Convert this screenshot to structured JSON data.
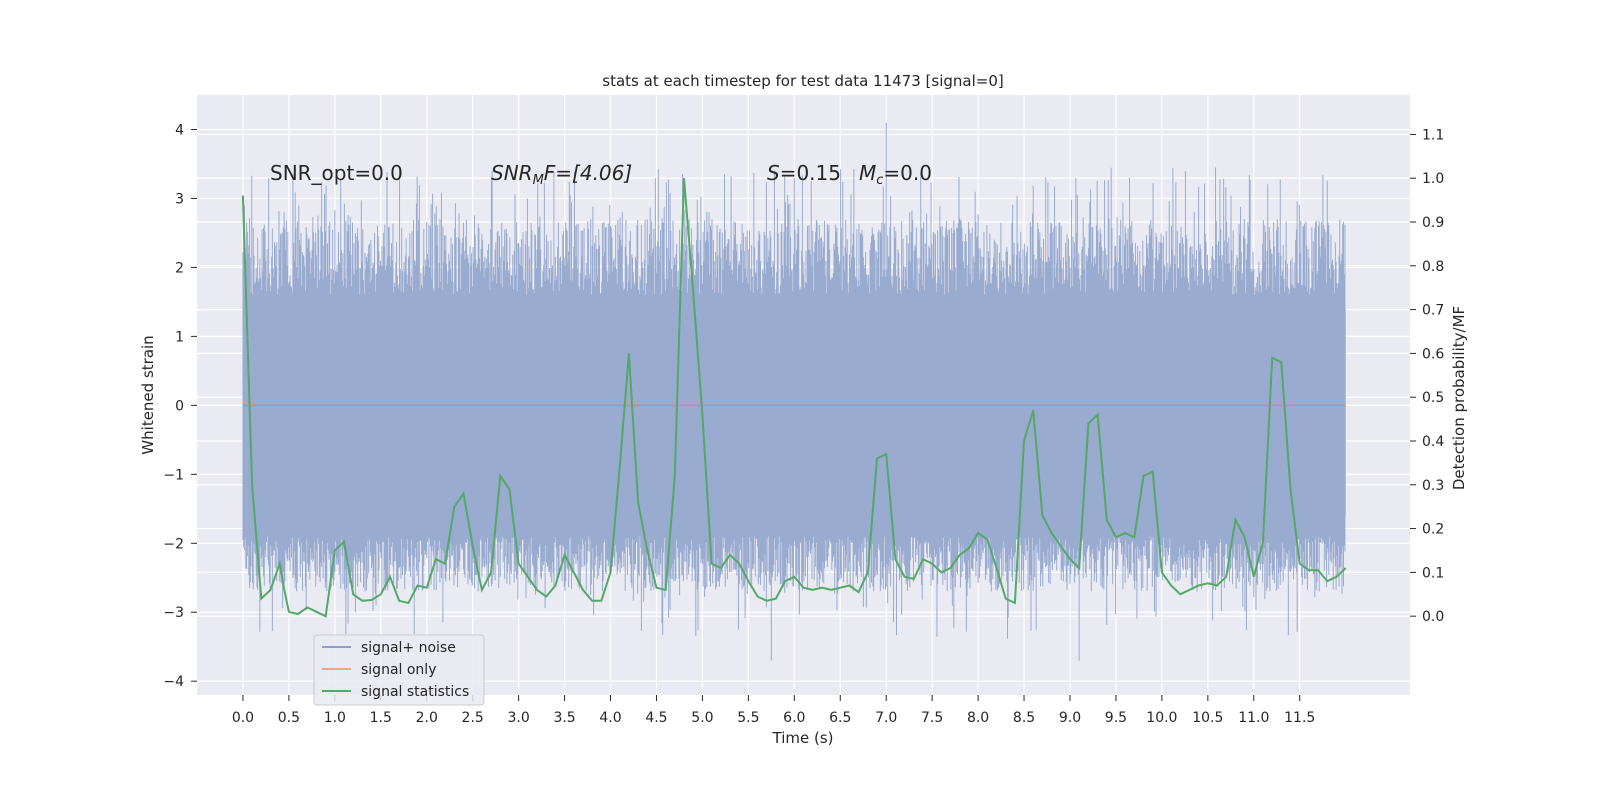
{
  "chart_data": {
    "type": "line",
    "title": "stats at each timestep for test data 11473 [signal=0]",
    "xlabel": "Time (s)",
    "ylabel_left": "Whitened strain",
    "ylabel_right": "Detection probability/MF",
    "xlim": [
      -0.5,
      12.7
    ],
    "ylim_left": [
      -4.2,
      4.5
    ],
    "ylim_right": [
      -0.18,
      1.19
    ],
    "x_ticks": [
      "0.0",
      "0.5",
      "1.0",
      "1.5",
      "2.0",
      "2.5",
      "3.0",
      "3.5",
      "4.0",
      "4.5",
      "5.0",
      "5.5",
      "6.0",
      "6.5",
      "7.0",
      "7.5",
      "8.0",
      "8.5",
      "9.0",
      "9.5",
      "10.0",
      "10.5",
      "11.0",
      "11.5"
    ],
    "x_tick_values": [
      0.0,
      0.5,
      1.0,
      1.5,
      2.0,
      2.5,
      3.0,
      3.5,
      4.0,
      4.5,
      5.0,
      5.5,
      6.0,
      6.5,
      7.0,
      7.5,
      8.0,
      8.5,
      9.0,
      9.5,
      10.0,
      10.5,
      11.0,
      11.5
    ],
    "y_left_ticks": [
      "−4",
      "−3",
      "−2",
      "−1",
      "0",
      "1",
      "2",
      "3",
      "4"
    ],
    "y_left_tick_values": [
      -4,
      -3,
      -2,
      -1,
      0,
      1,
      2,
      3,
      4
    ],
    "y_right_ticks": [
      "0.0",
      "0.1",
      "0.2",
      "0.3",
      "0.4",
      "0.5",
      "0.6",
      "0.7",
      "0.8",
      "0.9",
      "1.0",
      "1.1"
    ],
    "y_right_tick_values": [
      0.0,
      0.1,
      0.2,
      0.3,
      0.4,
      0.5,
      0.6,
      0.7,
      0.8,
      0.9,
      1.0,
      1.1
    ],
    "annotations": {
      "snr_opt": "SNR_opt=0.0",
      "snr_mf_sym": "SNR",
      "snr_mf_sub": "M",
      "snr_mf_rest": "F=[4.06]",
      "s_sym": "S",
      "s_rest": "=0.15",
      "mc_sym": "M",
      "mc_sub": "c",
      "mc_rest": "=0.0"
    },
    "legend": {
      "position": "lower-left",
      "entries": [
        {
          "label": "signal+ noise",
          "color": "#8da0cb"
        },
        {
          "label": "signal only",
          "color": "#e5a98a"
        },
        {
          "label": "signal statistics",
          "color": "#55a868"
        }
      ]
    },
    "noise_series": {
      "name": "signal+ noise",
      "color": "#9aabd0",
      "x_range": [
        0.0,
        12.0
      ],
      "amplitude_band": [
        -1.6,
        1.4
      ],
      "typical_peak_range": [
        2.0,
        3.45
      ],
      "typical_trough_range": [
        -2.2,
        -3.2
      ],
      "max": 4.1,
      "min": -3.7
    },
    "signal_only": {
      "name": "signal only",
      "color": "#dd8452",
      "x": [
        0.0,
        12.0
      ],
      "y": [
        0.0,
        0.0
      ]
    },
    "statistics_series": {
      "name": "signal statistics",
      "color": "#55a868",
      "x": [
        0.0,
        0.1,
        0.2,
        0.3,
        0.4,
        0.45,
        0.5,
        0.6,
        0.7,
        0.8,
        0.9,
        1.0,
        1.1,
        1.2,
        1.3,
        1.4,
        1.5,
        1.6,
        1.7,
        1.8,
        1.9,
        2.0,
        2.1,
        2.2,
        2.3,
        2.4,
        2.5,
        2.6,
        2.7,
        2.8,
        2.9,
        3.0,
        3.1,
        3.2,
        3.3,
        3.4,
        3.5,
        3.6,
        3.7,
        3.8,
        3.9,
        4.0,
        4.1,
        4.2,
        4.3,
        4.4,
        4.5,
        4.6,
        4.7,
        4.8,
        4.9,
        5.0,
        5.1,
        5.2,
        5.3,
        5.4,
        5.5,
        5.6,
        5.7,
        5.8,
        5.9,
        6.0,
        6.1,
        6.2,
        6.3,
        6.4,
        6.5,
        6.6,
        6.7,
        6.8,
        6.9,
        7.0,
        7.1,
        7.2,
        7.3,
        7.4,
        7.5,
        7.6,
        7.7,
        7.8,
        7.9,
        8.0,
        8.1,
        8.2,
        8.3,
        8.4,
        8.5,
        8.6,
        8.7,
        8.8,
        8.9,
        9.0,
        9.1,
        9.2,
        9.3,
        9.4,
        9.5,
        9.6,
        9.7,
        9.8,
        9.9,
        10.0,
        10.1,
        10.2,
        10.3,
        10.4,
        10.5,
        10.6,
        10.7,
        10.8,
        10.9,
        11.0,
        11.1,
        11.2,
        11.3,
        11.4,
        11.5,
        11.6,
        11.7,
        11.8,
        11.9,
        12.0
      ],
      "y": [
        0.96,
        0.3,
        0.04,
        0.06,
        0.12,
        0.06,
        0.01,
        0.005,
        0.02,
        0.01,
        0.0,
        0.15,
        0.17,
        0.05,
        0.035,
        0.037,
        0.05,
        0.09,
        0.035,
        0.03,
        0.07,
        0.065,
        0.13,
        0.12,
        0.25,
        0.28,
        0.16,
        0.06,
        0.1,
        0.32,
        0.29,
        0.12,
        0.09,
        0.06,
        0.045,
        0.07,
        0.14,
        0.1,
        0.06,
        0.035,
        0.035,
        0.1,
        0.34,
        0.6,
        0.26,
        0.15,
        0.065,
        0.06,
        0.32,
        1.0,
        0.74,
        0.46,
        0.12,
        0.11,
        0.14,
        0.12,
        0.08,
        0.045,
        0.035,
        0.04,
        0.08,
        0.09,
        0.065,
        0.06,
        0.065,
        0.06,
        0.065,
        0.07,
        0.055,
        0.1,
        0.36,
        0.37,
        0.13,
        0.09,
        0.085,
        0.13,
        0.12,
        0.1,
        0.11,
        0.14,
        0.155,
        0.19,
        0.175,
        0.11,
        0.04,
        0.03,
        0.4,
        0.47,
        0.23,
        0.19,
        0.16,
        0.13,
        0.11,
        0.44,
        0.46,
        0.22,
        0.18,
        0.19,
        0.18,
        0.32,
        0.33,
        0.1,
        0.07,
        0.05,
        0.06,
        0.07,
        0.075,
        0.07,
        0.09,
        0.22,
        0.18,
        0.09,
        0.17,
        0.59,
        0.58,
        0.29,
        0.12,
        0.105,
        0.105,
        0.08,
        0.09,
        0.11
      ],
      "y_note": "right-axis values"
    }
  }
}
